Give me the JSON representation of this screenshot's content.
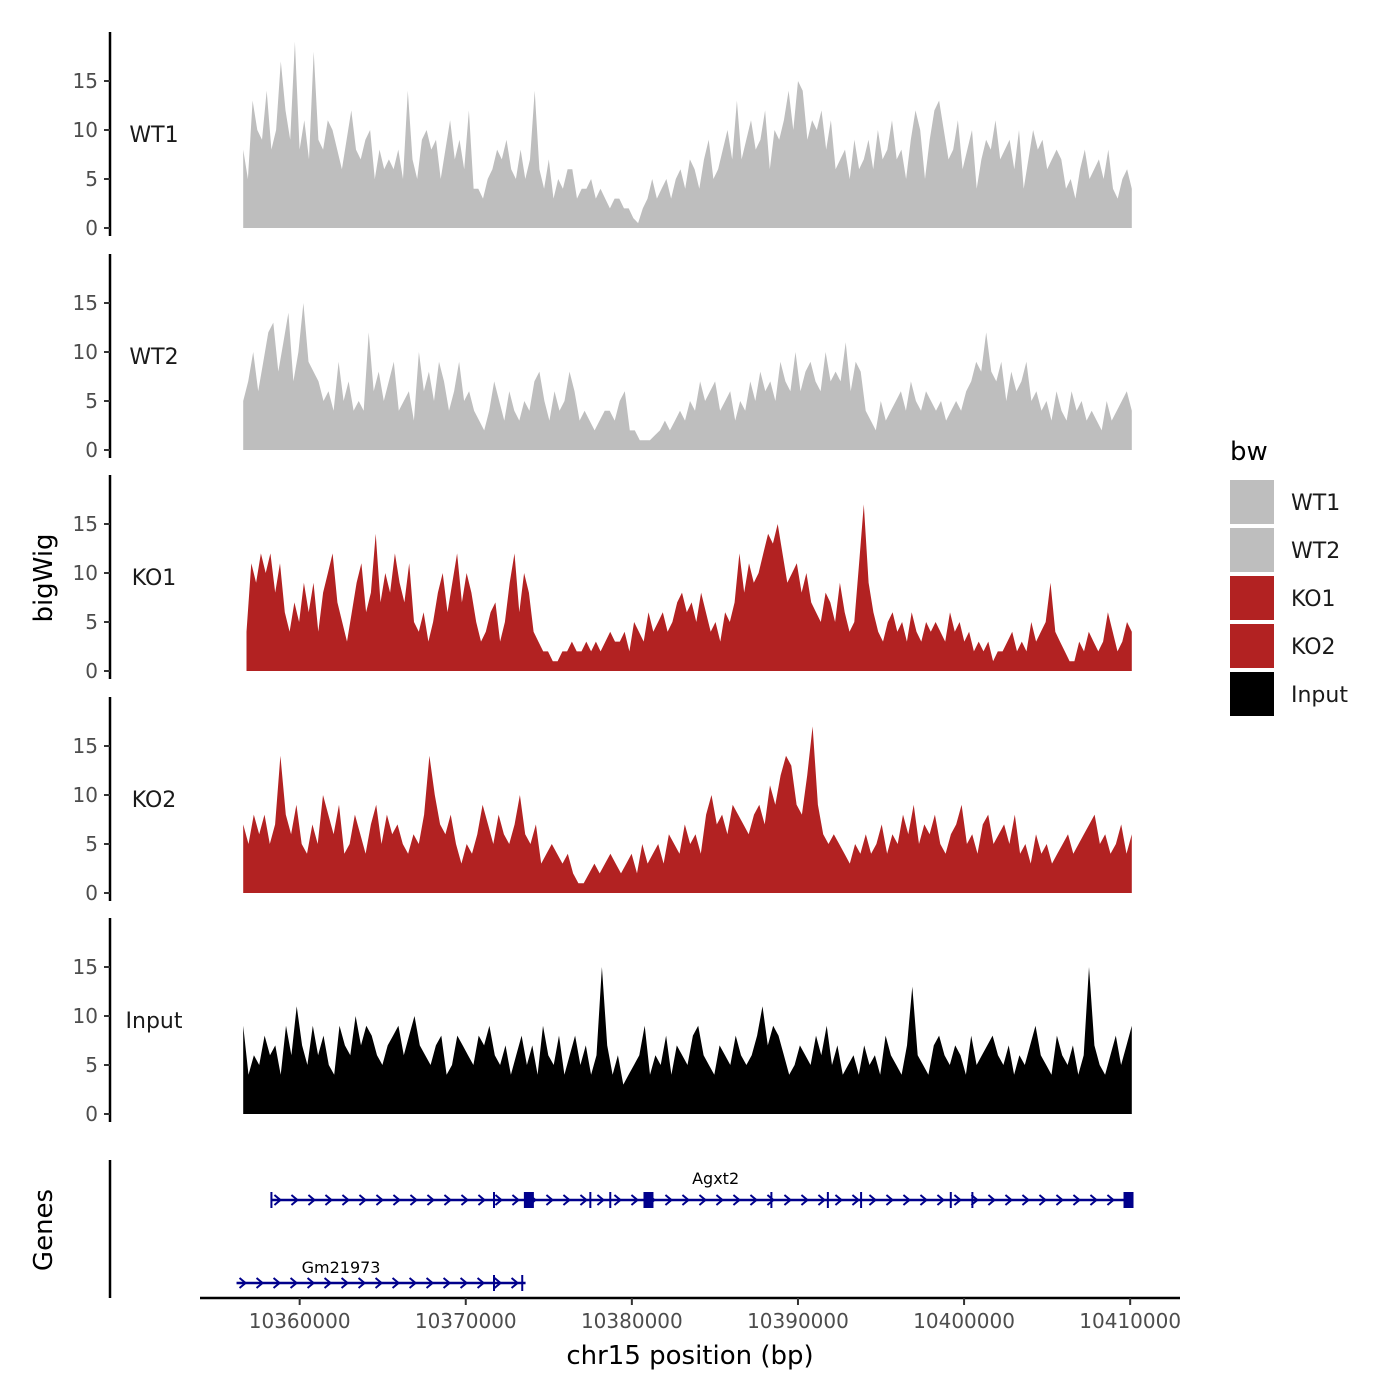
{
  "chart_data": {
    "type": "area",
    "ylabel": "bigWig",
    "xlabel": "chr15 position (bp)",
    "genes_label": "Genes",
    "ylim": [
      0,
      20
    ],
    "yticks": [
      0,
      5,
      10,
      15
    ],
    "xlim": [
      10354000,
      10413000
    ],
    "xticks": [
      {
        "value": 10360000,
        "label": "10360000"
      },
      {
        "value": 10370000,
        "label": "10370000"
      },
      {
        "value": 10380000,
        "label": "10380000"
      },
      {
        "value": 10390000,
        "label": "10390000"
      },
      {
        "value": 10400000,
        "label": "10400000"
      },
      {
        "value": 10410000,
        "label": "10410000"
      }
    ],
    "legend": {
      "title": "bw",
      "position": "right",
      "entries": [
        {
          "label": "WT1",
          "color": "#bebebe"
        },
        {
          "label": "WT2",
          "color": "#bebebe"
        },
        {
          "label": "KO1",
          "color": "#b22222"
        },
        {
          "label": "KO2",
          "color": "#b22222"
        },
        {
          "label": "Input",
          "color": "#000000"
        }
      ]
    },
    "series": [
      {
        "name": "WT1",
        "color": "#bebebe",
        "x_start": 10356600,
        "x_end": 10410100,
        "values": [
          8,
          5,
          13,
          10,
          9,
          14,
          8,
          10,
          17,
          12,
          9,
          19,
          8,
          11,
          7,
          18,
          9,
          8,
          11,
          10,
          8,
          6,
          9,
          12,
          8,
          7,
          9,
          10,
          5,
          8,
          6,
          7,
          6,
          8,
          5,
          14,
          7,
          5,
          9,
          10,
          8,
          9,
          5,
          8,
          11,
          7,
          9,
          6,
          12,
          4,
          4,
          3,
          5,
          6,
          8,
          7,
          9,
          6,
          5,
          8,
          5,
          7,
          14,
          6,
          4,
          7,
          3,
          5,
          4,
          6,
          6,
          3,
          4,
          4,
          5,
          3,
          4,
          3,
          2,
          3,
          3,
          2,
          2,
          1,
          0.5,
          2,
          3,
          5,
          3,
          4,
          5,
          3,
          5,
          6,
          4,
          7,
          6,
          4,
          7,
          9,
          5,
          6,
          8,
          10,
          7,
          13,
          7,
          9,
          11,
          8,
          9,
          12,
          6,
          10,
          9,
          11,
          14,
          10,
          15,
          14,
          9,
          11,
          10,
          12,
          8,
          11,
          6,
          7,
          8,
          5,
          9,
          6,
          7,
          9,
          6,
          10,
          7,
          8,
          11,
          7,
          8,
          5,
          9,
          12,
          10,
          5,
          9,
          12,
          13,
          10,
          7,
          8,
          11,
          6,
          8,
          10,
          4,
          7,
          9,
          8,
          11,
          7,
          8,
          9,
          6,
          10,
          4,
          7,
          10,
          8,
          9,
          6,
          7,
          8,
          7,
          4,
          5,
          3,
          6,
          8,
          5,
          6,
          7,
          5,
          8,
          4,
          3,
          5,
          6,
          4
        ]
      },
      {
        "name": "WT2",
        "color": "#bebebe",
        "x_start": 10356600,
        "x_end": 10410100,
        "values": [
          5,
          7,
          10,
          6,
          9,
          12,
          13,
          8,
          11,
          14,
          7,
          10,
          15,
          9,
          8,
          7,
          5,
          6,
          4,
          9,
          5,
          7,
          4,
          5,
          4,
          12,
          6,
          8,
          5,
          7,
          9,
          4,
          5,
          6,
          3,
          10,
          6,
          8,
          5,
          9,
          7,
          4,
          6,
          9,
          5,
          6,
          4,
          3,
          2,
          4,
          7,
          5,
          3,
          6,
          4,
          3,
          5,
          4,
          7,
          8,
          5,
          3,
          6,
          4,
          5,
          8,
          6,
          3,
          4,
          3,
          2,
          3,
          4,
          4,
          3,
          5,
          6,
          2,
          2,
          1,
          1,
          1,
          1.5,
          2,
          3,
          2,
          3,
          4,
          3,
          5,
          4,
          7,
          5,
          6,
          7,
          4,
          5,
          6,
          3,
          5,
          4,
          7,
          5,
          8,
          6,
          7,
          5,
          9,
          7,
          6,
          10,
          6,
          8,
          9,
          7,
          6,
          10,
          7,
          8,
          7,
          11,
          6,
          9,
          8,
          4,
          3,
          2,
          5,
          3,
          4,
          5,
          6,
          4,
          7,
          5,
          4,
          6,
          5,
          4,
          5,
          3,
          4,
          5,
          4,
          6,
          7,
          9,
          8,
          12,
          8,
          7,
          9,
          5,
          8,
          6,
          7,
          9,
          5,
          6,
          4,
          5,
          3,
          6,
          4,
          3,
          6,
          4,
          5,
          3,
          4,
          3,
          2,
          5,
          3,
          4,
          5,
          6,
          4
        ]
      },
      {
        "name": "KO1",
        "color": "#b22222",
        "x_start": 10356800,
        "x_end": 10410100,
        "values": [
          4,
          11,
          9,
          12,
          10,
          12,
          8,
          11,
          6,
          4,
          7,
          5,
          9,
          6,
          9,
          4,
          8,
          10,
          12,
          7,
          5,
          3,
          6,
          9,
          11,
          6,
          8,
          14,
          7,
          10,
          8,
          12,
          9,
          7,
          11,
          5,
          4,
          6,
          3,
          5,
          8,
          10,
          6,
          9,
          12,
          7,
          10,
          8,
          5,
          3,
          4,
          6,
          7,
          3,
          5,
          9,
          12,
          6,
          10,
          8,
          4,
          3,
          2,
          2,
          1,
          1,
          2,
          2,
          3,
          2,
          2,
          3,
          2,
          3,
          2,
          3,
          4,
          3,
          3,
          4,
          2,
          5,
          4,
          3,
          6,
          4,
          5,
          6,
          4,
          5,
          7,
          8,
          6,
          7,
          5,
          8,
          6,
          4,
          5,
          3,
          6,
          5,
          7,
          12,
          8,
          11,
          9,
          10,
          12,
          14,
          13,
          15,
          12,
          9,
          10,
          11,
          8,
          10,
          7,
          6,
          5,
          8,
          7,
          5,
          9,
          6,
          4,
          5,
          11,
          17,
          9,
          6,
          4,
          3,
          5,
          6,
          4,
          5,
          3,
          6,
          4,
          3,
          5,
          4,
          5,
          4,
          3,
          6,
          4,
          5,
          3,
          4,
          2,
          3,
          2,
          3,
          1,
          2,
          2,
          3,
          4,
          2,
          3,
          2,
          5,
          3,
          4,
          5,
          9,
          4,
          3,
          2,
          1,
          1,
          3,
          2,
          4,
          3,
          2,
          3,
          6,
          4,
          2,
          3,
          5,
          4
        ]
      },
      {
        "name": "KO2",
        "color": "#b22222",
        "x_start": 10356600,
        "x_end": 10410100,
        "values": [
          7,
          5,
          8,
          6,
          8,
          5,
          7,
          14,
          8,
          6,
          9,
          5,
          4,
          7,
          5,
          10,
          8,
          6,
          9,
          4,
          5,
          8,
          6,
          4,
          7,
          9,
          5,
          8,
          6,
          7,
          5,
          4,
          6,
          5,
          8,
          14,
          10,
          7,
          6,
          8,
          5,
          3,
          5,
          4,
          6,
          9,
          7,
          5,
          8,
          6,
          5,
          7,
          10,
          6,
          5,
          7,
          3,
          4,
          5,
          4,
          3,
          4,
          2,
          1,
          1,
          2,
          3,
          2,
          3,
          4,
          3,
          2,
          3,
          4,
          2,
          5,
          3,
          4,
          5,
          3,
          6,
          5,
          4,
          7,
          5,
          6,
          4,
          8,
          10,
          7,
          8,
          6,
          9,
          8,
          7,
          6,
          8,
          9,
          7,
          11,
          9,
          12,
          14,
          13,
          9,
          8,
          12,
          17,
          9,
          6,
          5,
          6,
          5,
          4,
          3,
          5,
          4,
          6,
          4,
          5,
          7,
          4,
          6,
          5,
          8,
          6,
          9,
          5,
          7,
          6,
          8,
          5,
          4,
          6,
          7,
          9,
          5,
          6,
          4,
          7,
          8,
          5,
          6,
          7,
          5,
          8,
          4,
          5,
          3,
          6,
          4,
          5,
          3,
          4,
          5,
          6,
          4,
          5,
          6,
          7,
          8,
          5,
          6,
          4,
          5,
          7,
          4,
          6
        ]
      },
      {
        "name": "Input",
        "color": "#000000",
        "x_start": 10356600,
        "x_end": 10410100,
        "values": [
          9,
          4,
          6,
          5,
          8,
          6,
          7,
          4,
          9,
          6,
          11,
          7,
          5,
          9,
          6,
          8,
          5,
          4,
          9,
          7,
          6,
          10,
          7,
          9,
          8,
          6,
          5,
          7,
          8,
          9,
          6,
          8,
          10,
          7,
          6,
          5,
          7,
          8,
          4,
          5,
          8,
          7,
          6,
          5,
          8,
          7,
          9,
          6,
          5,
          7,
          4,
          6,
          8,
          5,
          7,
          4,
          9,
          6,
          5,
          8,
          4,
          6,
          8,
          5,
          7,
          4,
          6,
          15,
          7,
          4,
          6,
          3,
          4,
          5,
          6,
          9,
          4,
          6,
          5,
          8,
          4,
          7,
          6,
          5,
          8,
          9,
          6,
          5,
          4,
          7,
          6,
          5,
          8,
          6,
          5,
          6,
          8,
          11,
          7,
          9,
          8,
          6,
          4,
          5,
          7,
          6,
          5,
          8,
          6,
          9,
          5,
          7,
          4,
          5,
          6,
          4,
          7,
          5,
          6,
          4,
          8,
          6,
          5,
          4,
          7,
          13,
          6,
          5,
          4,
          7,
          8,
          6,
          5,
          7,
          6,
          4,
          8,
          5,
          6,
          7,
          8,
          6,
          5,
          7,
          4,
          6,
          5,
          7,
          9,
          6,
          5,
          4,
          8,
          6,
          5,
          7,
          4,
          6,
          15,
          7,
          5,
          4,
          6,
          8,
          5,
          7,
          9
        ]
      }
    ],
    "genes": [
      {
        "name": "Agxt2",
        "start": 10358300,
        "end": 10410100,
        "strand": "+",
        "exons": [
          10358300,
          10371700,
          10373700,
          10374000,
          10377500,
          10378700,
          10381000,
          10388400,
          10391800,
          10393800,
          10399200,
          10400500,
          10410000
        ]
      },
      {
        "name": "Gm21973",
        "start": 10356200,
        "end": 10373600,
        "strand": "+",
        "exons": [
          10371700,
          10373400
        ]
      }
    ]
  }
}
